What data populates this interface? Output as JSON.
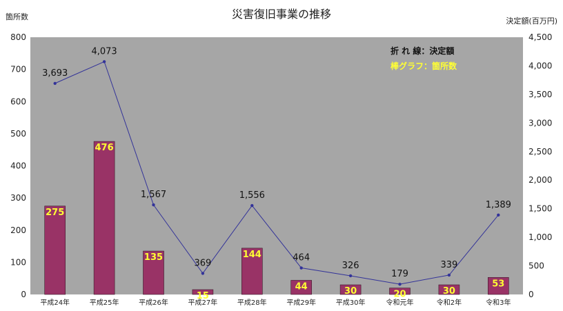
{
  "chart_data": {
    "type": "bar",
    "title": "災害復旧事業の推移",
    "categories": [
      "平成24年",
      "平成25年",
      "平成26年",
      "平成27年",
      "平成28年",
      "平成29年",
      "平成30年",
      "令和元年",
      "令和2年",
      "令和3年"
    ],
    "y_left_label": "箇所数",
    "y_right_label": "決定額(百万円)",
    "ylim_left": [
      0,
      800
    ],
    "ylim_right": [
      0,
      4500
    ],
    "y_left_ticks": [
      0,
      100,
      200,
      300,
      400,
      500,
      600,
      700,
      800
    ],
    "y_right_ticks": [
      0,
      500,
      1000,
      1500,
      2000,
      2500,
      3000,
      3500,
      4000,
      4500
    ],
    "y_right_tick_labels": [
      "0",
      "500",
      "1,000",
      "1,500",
      "2,000",
      "2,500",
      "3,000",
      "3,500",
      "4,000",
      "4,500"
    ],
    "series": [
      {
        "kind": "bar",
        "axis": "left",
        "values": [
          275,
          476,
          135,
          15,
          144,
          44,
          30,
          20,
          30,
          53
        ],
        "labels": [
          "275",
          "476",
          "135",
          "15",
          "144",
          "44",
          "30",
          "20",
          "30",
          "53"
        ]
      },
      {
        "kind": "line",
        "axis": "right",
        "values": [
          3693,
          4073,
          1567,
          369,
          1556,
          464,
          326,
          179,
          339,
          1389
        ],
        "labels": [
          "3,693",
          "4,073",
          "1,567",
          "369",
          "1,556",
          "464",
          "326",
          "179",
          "339",
          "1,389"
        ]
      }
    ],
    "legend": {
      "line_text": "折 れ 線：決定額",
      "bar_text": "棒グラフ：箇所数",
      "placement": "top-right"
    },
    "colors": {
      "plot_background": "#a6a6a6",
      "bar_fill": "#993366",
      "line": "#333399",
      "bar_label": "#ffff33"
    },
    "grid": false
  }
}
